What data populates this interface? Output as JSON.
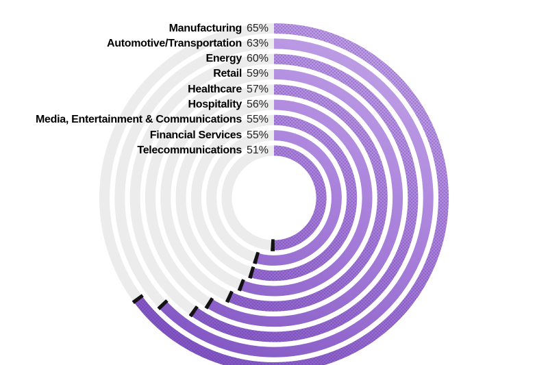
{
  "chart_data": {
    "type": "radial-bar",
    "title": "",
    "unit": "%",
    "categories": [
      "Manufacturing",
      "Automotive/Transportation",
      "Energy",
      "Retail",
      "Healthcare",
      "Hospitality",
      "Media, Entertainment & Communications",
      "Financial Services",
      "Telecommunications"
    ],
    "values": [
      65,
      63,
      60,
      59,
      57,
      56,
      55,
      55,
      51
    ],
    "display_values": [
      "65%",
      "63%",
      "60%",
      "59%",
      "57%",
      "56%",
      "55%",
      "55%",
      "51%"
    ],
    "start_angle_deg": 0,
    "direction": "clockwise",
    "degrees_per_percent": 3.6,
    "ring_order": "outermost-to-innermost",
    "ring_patterns": [
      "dotted",
      "solid",
      "dotted",
      "solid",
      "dotted",
      "solid",
      "dotted",
      "solid",
      "dotted"
    ],
    "legend": "none",
    "colors": {
      "arc_gradient_top": "#c6a9ea",
      "arc_gradient_mid": "#a981db",
      "arc_gradient_bottom": "#7c50c0",
      "dot_overlay": "#5a2d9c",
      "track": "#ececec",
      "end_cap": "#131313",
      "label_text": "#000000",
      "value_text": "#222222",
      "background": "#ffffff"
    }
  }
}
